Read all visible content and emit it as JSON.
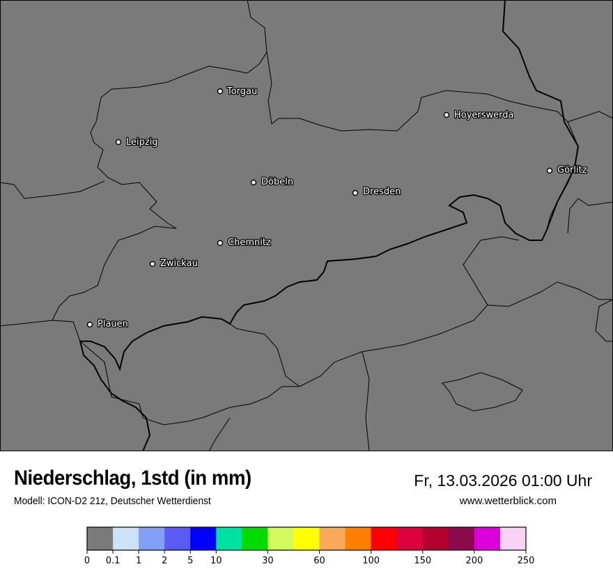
{
  "header": {
    "title": "Niederschlag, 1std (in mm)",
    "model": "Modell: ICON-D2 21z, Deutscher Wetterdienst",
    "datetime": "Fr, 13.03.2026 01:00 Uhr",
    "website": "www.wetterblick.com"
  },
  "map": {
    "background_color": "#7a7a7a",
    "border_color": "#000000",
    "cities": [
      {
        "name": "Torgau"
      },
      {
        "name": "Hoyerswerda"
      },
      {
        "name": "Leipzig"
      },
      {
        "name": "Görlitz"
      },
      {
        "name": "Döbeln"
      },
      {
        "name": "Dresden"
      },
      {
        "name": "Chemnitz"
      },
      {
        "name": "Zwickau"
      },
      {
        "name": "Plauen"
      }
    ]
  },
  "legend": {
    "colors": [
      "#7a7a7a",
      "#cde2f7",
      "#82a0f5",
      "#5a5af5",
      "#0000ff",
      "#00e0a0",
      "#00dc00",
      "#d2fa5a",
      "#ffff00",
      "#f8aa5a",
      "#ff8000",
      "#ff0000",
      "#dc003c",
      "#b4002d",
      "#8c0a4b",
      "#dc00dc",
      "#f8d2f5"
    ],
    "ticks": [
      "0",
      "0.1",
      "1",
      "2",
      "5",
      "10",
      "30",
      "60",
      "100",
      "150",
      "200",
      "250"
    ]
  }
}
